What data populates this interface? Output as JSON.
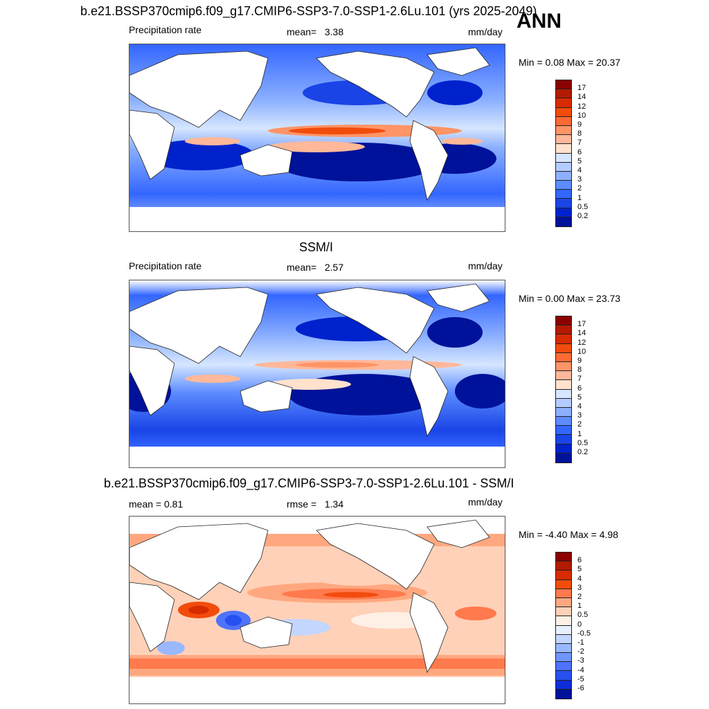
{
  "figure": {
    "season": "ANN"
  },
  "panels": [
    {
      "id": "model",
      "title": "b.e21.BSSP370cmip6.f09_g17.CMIP6-SSP3-7.0-SSP1-2.6Lu.101 (yrs 2025-2049)",
      "left_label": "Precipitation rate",
      "stat_label": "mean=",
      "stat_value": "3.38",
      "units": "mm/day",
      "minmax": "Min =   0.08 Max =  20.37"
    },
    {
      "id": "obs",
      "title": "SSM/I",
      "left_label": "Precipitation rate",
      "stat_label": "mean=",
      "stat_value": "2.57",
      "units": "mm/day",
      "minmax": "Min =   0.00 Max =  23.73"
    },
    {
      "id": "diff",
      "title": "b.e21.BSSP370cmip6.f09_g17.CMIP6-SSP3-7.0-SSP1-2.6Lu.101 - SSM/I",
      "left_label": "mean =   0.81",
      "stat_label": "rmse =",
      "stat_value": "1.34",
      "units": "mm/day",
      "minmax": "Min =  -4.40 Max =   4.98"
    }
  ],
  "colorbars": {
    "precip": {
      "labels": [
        "17",
        "14",
        "12",
        "10",
        "9",
        "8",
        "7",
        "6",
        "5",
        "4",
        "3",
        "2",
        "1",
        "0.5",
        "0.2"
      ],
      "colors": [
        "#8b0000",
        "#b31a00",
        "#d92b00",
        "#f24c0d",
        "#ff6a33",
        "#ff9466",
        "#ffb899",
        "#ffe1cc",
        "#d6e6ff",
        "#b3ccff",
        "#8cb0ff",
        "#5c8cff",
        "#3366ff",
        "#1a44e6",
        "#0022cc",
        "#001299"
      ]
    },
    "diff": {
      "labels": [
        "6",
        "5",
        "4",
        "3",
        "2",
        "1",
        "0.5",
        "0",
        "-0.5",
        "-1",
        "-2",
        "-3",
        "-4",
        "-5",
        "-6"
      ],
      "colors": [
        "#8b0000",
        "#b31a00",
        "#d92b00",
        "#f24c0d",
        "#ff7a4d",
        "#ffa880",
        "#ffd1b8",
        "#fff0e6",
        "#e6f0ff",
        "#c2d6ff",
        "#99b8ff",
        "#7096ff",
        "#4d73ff",
        "#2650f0",
        "#0d2ed9",
        "#001299"
      ]
    }
  }
}
